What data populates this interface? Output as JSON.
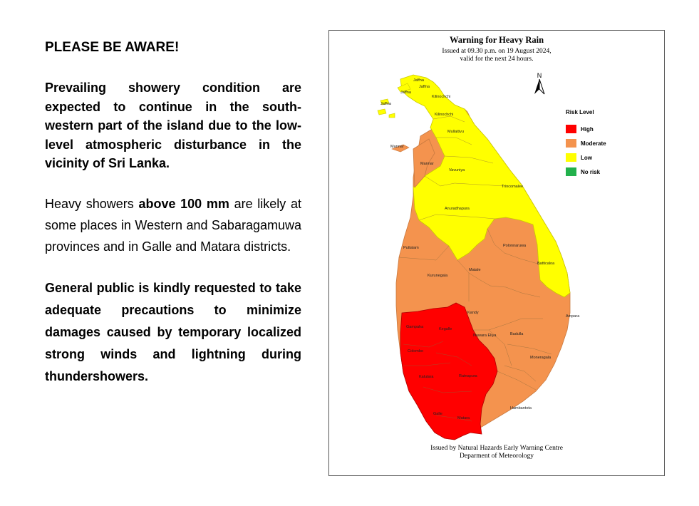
{
  "advisory": {
    "headline": "PLEASE BE AWARE!",
    "paragraph1": "Prevailing showery condition are expected to continue in the south-western part of the island due to the low-level atmospheric disturbance in the vicinity of Sri Lanka.",
    "paragraph2_pre": "Heavy showers ",
    "paragraph2_bold": "above 100 mm",
    "paragraph2_post": " are likely at some places in Western and Sabaragamuwa provinces and in Galle and Matara districts.",
    "paragraph3": "General public is kindly requested to take adequate precautions to minimize damages caused by temporary localized strong winds and lightning during thundershowers."
  },
  "map": {
    "title": "Warning for Heavy Rain",
    "issued_line1": "Issued at 09.30 p.m. on 19 August 2024,",
    "issued_line2": "valid for the next 24 hours.",
    "north_label": "N",
    "footer_line1": "Issued by Natural Hazards Early Warning Centre",
    "footer_line2": "Deparment of Meteorology",
    "legend": {
      "title": "Risk Level",
      "items": [
        {
          "label": "High",
          "color": "#ff0000"
        },
        {
          "label": "Moderate",
          "color": "#f4934e"
        },
        {
          "label": "Low",
          "color": "#ffff00"
        },
        {
          "label": "No risk",
          "color": "#22b14c"
        }
      ]
    },
    "districts": {
      "jaffna1": "Jaffna",
      "jaffna2": "Jaffna",
      "jaffna3": "Jaffna",
      "jaffna4": "Jaffna",
      "kilinochchi1": "Kilinochchi",
      "kilinochchi2": "Kilinochchi",
      "mannar1": "Mannar",
      "mannar2": "Mannar",
      "mullaitivu": "Mullaitivu",
      "vavuniya": "Vavuniya",
      "trincomalee": "Trincomalee",
      "anuradhapura": "Anuradhapura",
      "puttalam": "Puttalam",
      "polonnaruwa": "Polonnaruwa",
      "kurunegala": "Kurunegala",
      "matale": "Matale",
      "batticaloa": "Batticaloa",
      "kandy": "Kandy",
      "ampara": "Ampara",
      "gampaha": "Gampaha",
      "kegalle": "Kegalle",
      "nuwara_eliya": "Nuwara Eliya",
      "badulla": "Badulla",
      "colombo": "Colombo",
      "moneragala": "Moneragala",
      "kalutara": "Kalutara",
      "ratnapura": "Ratnapura",
      "hambantota": "Hambantota",
      "galle": "Galle",
      "matara": "Matara"
    }
  }
}
